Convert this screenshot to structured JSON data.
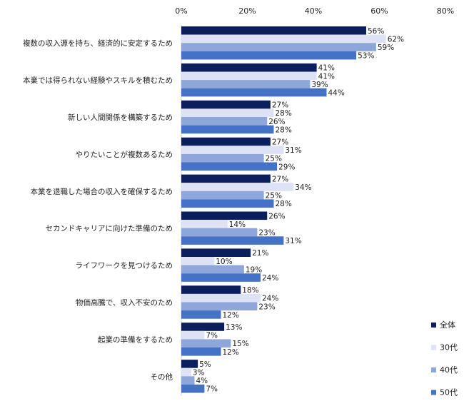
{
  "chart_data": {
    "type": "bar",
    "orientation": "horizontal",
    "categories": [
      "複数の収入源を持ち、経済的に安定するため",
      "本業では得られない経験やスキルを積むため",
      "新しい人間関係を構築するため",
      "やりたいことが複数あるため",
      "本業を退職した場合の収入を確保するため",
      "セカンドキャリアに向けた準備のため",
      "ライフワークを見つけるため",
      "物価高騰で、収入不安のため",
      "起業の準備をするため",
      "その他"
    ],
    "series": [
      {
        "name": "全体",
        "color": "#0a1f5c",
        "values": [
          56,
          41,
          27,
          27,
          27,
          26,
          21,
          18,
          13,
          5
        ]
      },
      {
        "name": "30代",
        "color": "#dde3f5",
        "values": [
          62,
          41,
          28,
          31,
          34,
          14,
          10,
          24,
          7,
          3
        ]
      },
      {
        "name": "40代",
        "color": "#8fa6db",
        "values": [
          59,
          39,
          26,
          25,
          25,
          23,
          19,
          23,
          15,
          4
        ]
      },
      {
        "name": "50代",
        "color": "#4472c4",
        "values": [
          53,
          44,
          28,
          29,
          28,
          31,
          24,
          12,
          12,
          7
        ]
      }
    ],
    "x_ticks": [
      "0%",
      "20%",
      "40%",
      "60%",
      "80%"
    ],
    "xlim": [
      0,
      80
    ],
    "value_suffix": "%",
    "legend_position": "bottom-right",
    "grid": false
  }
}
